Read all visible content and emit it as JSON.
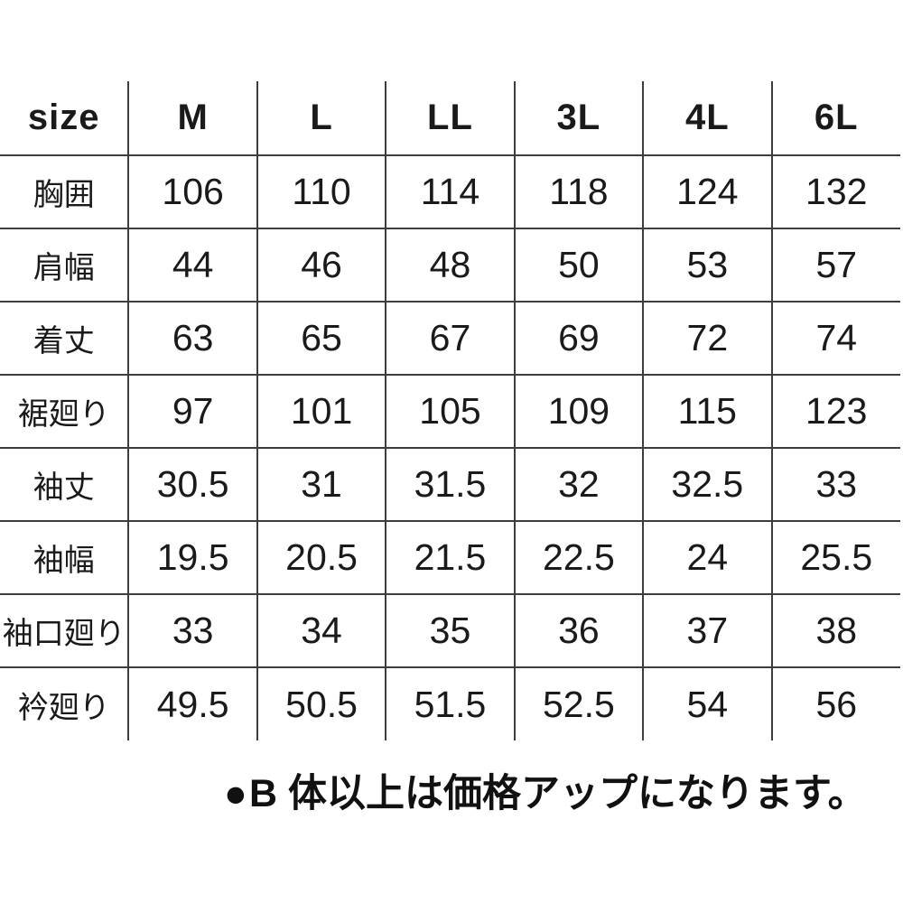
{
  "chart_data": {
    "type": "table",
    "columns": [
      "size",
      "M",
      "L",
      "LL",
      "3L",
      "4L",
      "6L"
    ],
    "rows": [
      [
        "胸囲",
        "106",
        "110",
        "114",
        "118",
        "124",
        "132"
      ],
      [
        "肩幅",
        "44",
        "46",
        "48",
        "50",
        "53",
        "57"
      ],
      [
        "着丈",
        "63",
        "65",
        "67",
        "69",
        "72",
        "74"
      ],
      [
        "裾廻り",
        "97",
        "101",
        "105",
        "109",
        "115",
        "123"
      ],
      [
        "袖丈",
        "30.5",
        "31",
        "31.5",
        "32",
        "32.5",
        "33"
      ],
      [
        "袖幅",
        "19.5",
        "20.5",
        "21.5",
        "22.5",
        "24",
        "25.5"
      ],
      [
        "袖口廻り",
        "33",
        "34",
        "35",
        "36",
        "37",
        "38"
      ],
      [
        "衿廻り",
        "49.5",
        "50.5",
        "51.5",
        "52.5",
        "54",
        "56"
      ]
    ],
    "annotation": "●B 体以上は価格アップになります。",
    "layout": {
      "grid": "internal-lines-only",
      "legend_position": "none"
    }
  },
  "footnote": {
    "bullet": "●",
    "text": "B 体以上は価格アップになります。"
  },
  "colors": {
    "background": "#ffffff",
    "text": "#1a1a1a",
    "grid_line": "#3d3d3d"
  }
}
